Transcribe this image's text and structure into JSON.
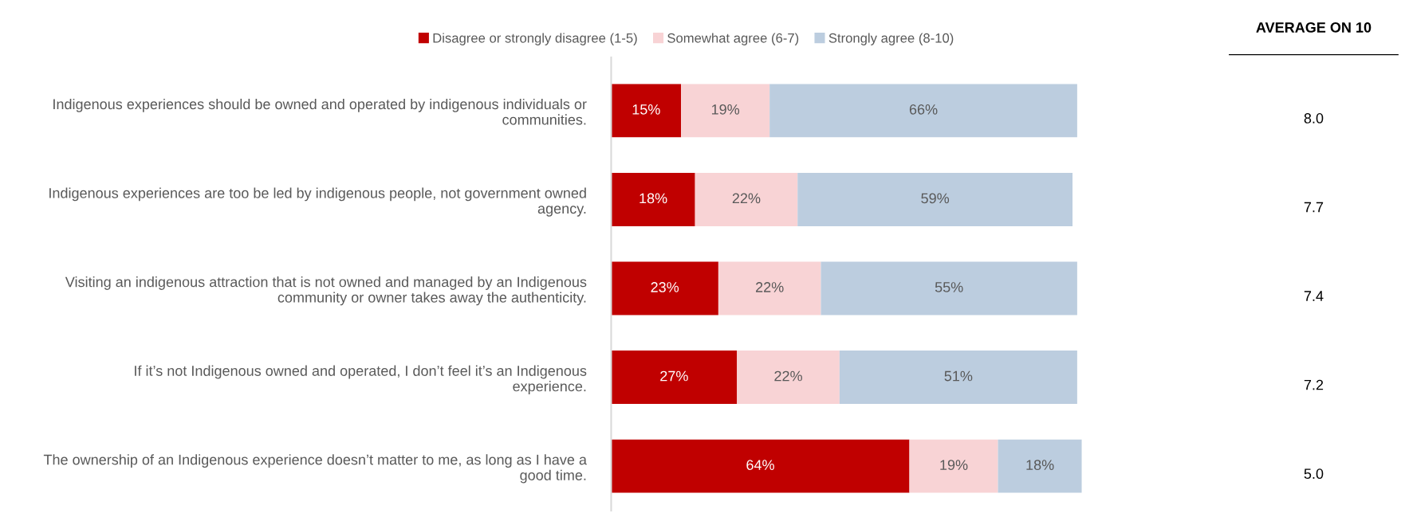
{
  "chart_data": {
    "type": "bar",
    "orientation": "horizontal",
    "stacked": true,
    "legend": "top",
    "grid": false,
    "categories": [
      "Indigenous experiences should be owned and operated by indigenous individuals or communities.",
      "Indigenous experiences are too be led by indigenous people, not government owned agency.",
      "Visiting an indigenous attraction that is not owned and managed by an Indigenous community or owner takes away the authenticity.",
      "If it’s not Indigenous owned and operated, I don’t feel it’s an Indigenous experience.",
      "The ownership of an Indigenous experience doesn’t matter to me, as long as I have a good time."
    ],
    "series": [
      {
        "name": "Disagree or strongly disagree (1-5)",
        "color": "#c00000",
        "values": [
          15,
          18,
          23,
          27,
          64
        ],
        "value_labels": [
          "15%",
          "18%",
          "23%",
          "27%",
          "64%"
        ]
      },
      {
        "name": "Somewhat agree (6-7)",
        "color": "#f8d3d5",
        "values": [
          19,
          22,
          22,
          22,
          19
        ],
        "value_labels": [
          "19%",
          "22%",
          "22%",
          "22%",
          "19%"
        ]
      },
      {
        "name": "Strongly agree (8-10)",
        "color": "#bccddf",
        "values": [
          66,
          59,
          55,
          51,
          18
        ],
        "value_labels": [
          "66%",
          "59%",
          "55%",
          "51%",
          "18%"
        ]
      }
    ],
    "annotations": [
      "AVERAGE ON 10",
      "8.0",
      "7.7",
      "7.4",
      "7.2",
      "5.0"
    ]
  }
}
